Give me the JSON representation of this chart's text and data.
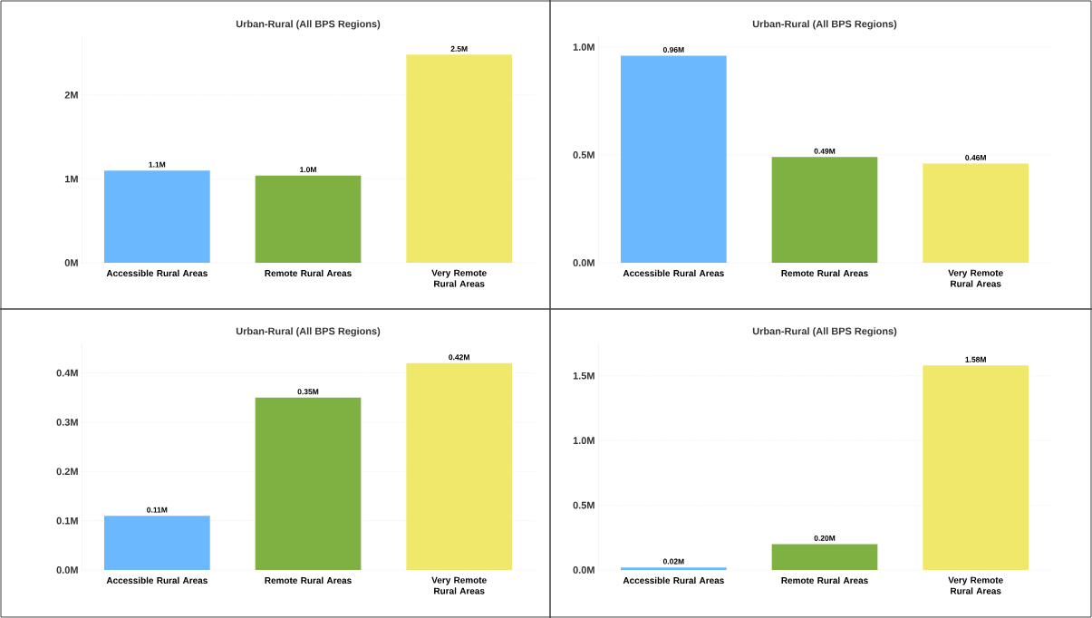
{
  "chart_data": [
    {
      "type": "bar",
      "title": "Urban-Rural (All BPS Regions)",
      "categories": [
        "Accessible Rural Areas",
        "Remote Rural Areas",
        "Very Remote Rural Areas"
      ],
      "values": [
        1.1,
        1.04,
        2.48
      ],
      "colors": [
        "#6cb8ff",
        "#7fb142",
        "#efe86a"
      ],
      "value_labels": [
        "1.1M",
        "1.0M",
        "2.5M"
      ],
      "ylim": [
        0,
        2.7
      ],
      "yticks": [
        {
          "value": 0,
          "label": "0M"
        },
        {
          "value": 1,
          "label": "1M"
        },
        {
          "value": 2,
          "label": "2M"
        }
      ],
      "grid": "y"
    },
    {
      "type": "bar",
      "title": "Urban-Rural (All BPS Regions)",
      "categories": [
        "Accessible Rural Areas",
        "Remote Rural Areas",
        "Very Remote Rural Areas"
      ],
      "values": [
        0.96,
        0.49,
        0.46
      ],
      "colors": [
        "#6cb8ff",
        "#7fb142",
        "#efe86a"
      ],
      "value_labels": [
        "0.96M",
        "0.49M",
        "0.46M"
      ],
      "ylim": [
        0,
        1.05
      ],
      "yticks": [
        {
          "value": 0,
          "label": "0.0M"
        },
        {
          "value": 0.5,
          "label": "0.5M"
        },
        {
          "value": 1,
          "label": "1.0M"
        }
      ],
      "grid": "y"
    },
    {
      "type": "bar",
      "title": "Urban-Rural (All BPS Regions)",
      "categories": [
        "Accessible Rural Areas",
        "Remote Rural Areas",
        "Very Remote Rural Areas"
      ],
      "values": [
        0.11,
        0.35,
        0.42
      ],
      "colors": [
        "#6cb8ff",
        "#7fb142",
        "#efe86a"
      ],
      "value_labels": [
        "0.11M",
        "0.35M",
        "0.42M"
      ],
      "ylim": [
        0,
        0.46
      ],
      "yticks": [
        {
          "value": 0,
          "label": "0.0M"
        },
        {
          "value": 0.1,
          "label": "0.1M"
        },
        {
          "value": 0.2,
          "label": "0.2M"
        },
        {
          "value": 0.3,
          "label": "0.3M"
        },
        {
          "value": 0.4,
          "label": "0.4M"
        }
      ],
      "grid": "y"
    },
    {
      "type": "bar",
      "title": "Urban-Rural (All BPS Regions)",
      "categories": [
        "Accessible Rural Areas",
        "Remote Rural Areas",
        "Very Remote Rural Areas"
      ],
      "values": [
        0.02,
        0.2,
        1.58
      ],
      "colors": [
        "#6cb8ff",
        "#7fb142",
        "#efe86a"
      ],
      "value_labels": [
        "0.02M",
        "0.20M",
        "1.58M"
      ],
      "ylim": [
        0,
        1.75
      ],
      "yticks": [
        {
          "value": 0,
          "label": "0.0M"
        },
        {
          "value": 0.5,
          "label": "0.5M"
        },
        {
          "value": 1,
          "label": "1.0M"
        },
        {
          "value": 1.5,
          "label": "1.5M"
        }
      ],
      "grid": "y"
    }
  ]
}
